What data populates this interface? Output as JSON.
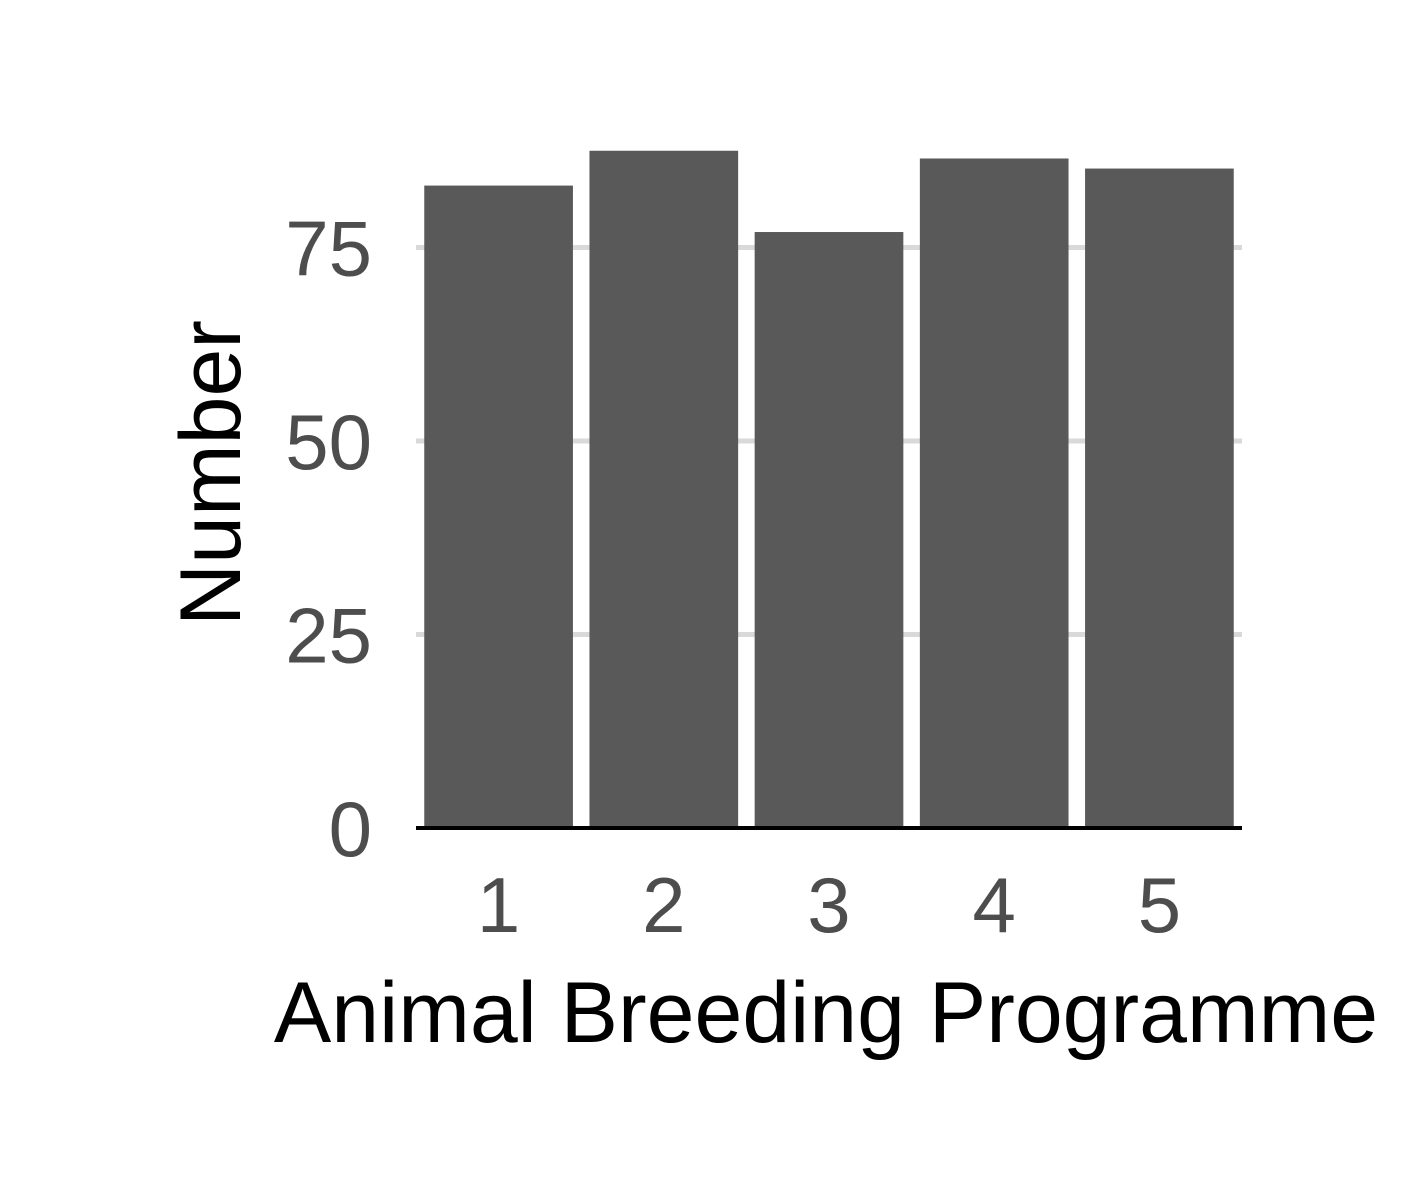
{
  "chart_data": {
    "type": "bar",
    "categories": [
      "1",
      "2",
      "3",
      "4",
      "5"
    ],
    "values": [
      83,
      87.5,
      77,
      86.5,
      85.2
    ],
    "title": "",
    "xlabel": "Animal Breeding Programme",
    "ylabel": "Number",
    "ylim": [
      0,
      90
    ],
    "yticks": [
      0,
      25,
      50,
      75
    ],
    "grid": "horizontal major",
    "legend": "none",
    "colors": {
      "bar": "#595959",
      "grid": "#d9d9d9",
      "axis": "#000000",
      "tick_text": "#4d4d4d"
    }
  }
}
